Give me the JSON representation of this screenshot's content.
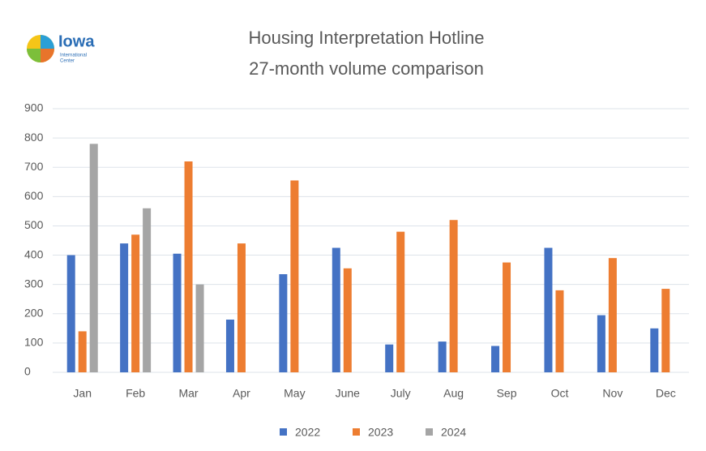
{
  "logo": {
    "name": "Iowa",
    "subtitle": [
      "International",
      "Center"
    ]
  },
  "chart_data": {
    "type": "bar",
    "title": [
      "Housing Interpretation Hotline",
      "27-month volume comparison"
    ],
    "categories": [
      "Jan",
      "Feb",
      "Mar",
      "Apr",
      "May",
      "June",
      "July",
      "Aug",
      "Sep",
      "Oct",
      "Nov",
      "Dec"
    ],
    "series": [
      {
        "name": "2022",
        "color": "#4472c4",
        "values": [
          400,
          440,
          405,
          180,
          335,
          425,
          95,
          105,
          90,
          425,
          195,
          150
        ]
      },
      {
        "name": "2023",
        "color": "#ed7d31",
        "values": [
          140,
          470,
          720,
          440,
          655,
          355,
          480,
          520,
          375,
          280,
          390,
          285
        ]
      },
      {
        "name": "2024",
        "color": "#a5a5a5",
        "values": [
          780,
          560,
          300,
          null,
          null,
          null,
          null,
          null,
          null,
          null,
          null,
          null
        ]
      }
    ],
    "ylim": [
      0,
      900
    ],
    "yticks": [
      0,
      100,
      200,
      300,
      400,
      500,
      600,
      700,
      800,
      900
    ],
    "grid": true,
    "legend": "bottom"
  }
}
